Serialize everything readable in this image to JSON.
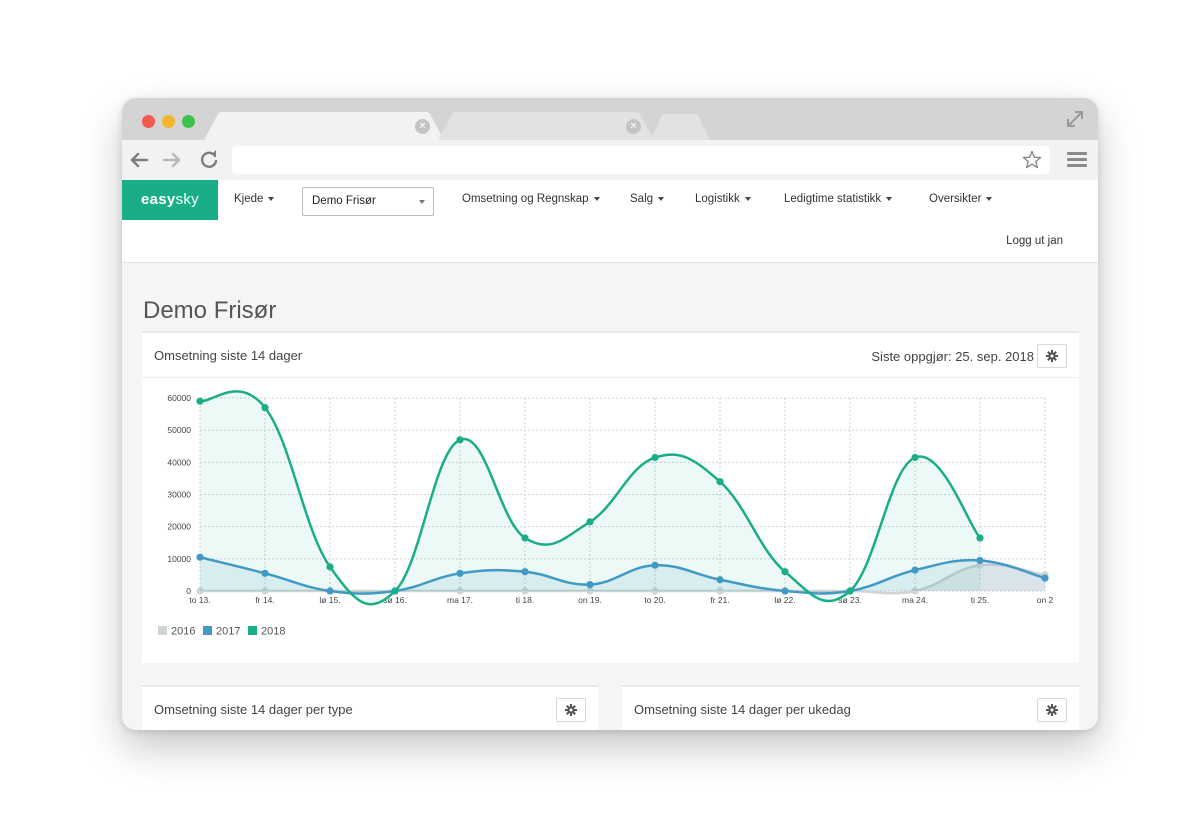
{
  "colors": {
    "accent": "#1aae88",
    "s2016": "#cfd4d4",
    "s2017": "#4498c8",
    "s2018": "#1aae88"
  },
  "browser": {
    "address_value": ""
  },
  "appnav": {
    "logo_part1": "easy",
    "logo_part2": "sky",
    "items": [
      {
        "label": "Kjede"
      },
      {
        "label": "Omsetning og Regnskap"
      },
      {
        "label": "Salg"
      },
      {
        "label": "Logistikk"
      },
      {
        "label": "Ledigtime statistikk"
      },
      {
        "label": "Oversikter"
      }
    ],
    "store_select": "Demo Frisør",
    "logout": "Logg ut jan"
  },
  "page": {
    "title": "Demo Frisør"
  },
  "panels": {
    "main": {
      "title": "Omsetning siste 14 dager",
      "last_settlement": "Siste oppgjør: 25. sep. 2018"
    },
    "by_type": {
      "title": "Omsetning siste 14 dager per type"
    },
    "by_weekday": {
      "title": "Omsetning siste 14 dager per ukedag"
    }
  },
  "chart_data": {
    "type": "area",
    "categories": [
      "to 13.",
      "fr 14.",
      "lø 15.",
      "sø 16.",
      "ma 17.",
      "ti 18.",
      "on 19.",
      "to 20.",
      "fr 21.",
      "lø 22.",
      "sø 23.",
      "ma 24.",
      "ti 25.",
      "on 2"
    ],
    "ylim": [
      0,
      60000
    ],
    "yticks": [
      0,
      10000,
      20000,
      30000,
      40000,
      50000,
      60000
    ],
    "grid": true,
    "legend_position": "bottom-left",
    "series": [
      {
        "name": "2016",
        "values": [
          0,
          0,
          0,
          0,
          0,
          0,
          0,
          0,
          0,
          0,
          0,
          0,
          8000,
          5000
        ]
      },
      {
        "name": "2017",
        "values": [
          10500,
          5500,
          0,
          0,
          5500,
          6000,
          2000,
          8000,
          3500,
          0,
          0,
          6500,
          9500,
          4000
        ]
      },
      {
        "name": "2018",
        "values": [
          59000,
          57000,
          7500,
          0,
          47000,
          16500,
          21500,
          41500,
          34000,
          6000,
          0,
          41500,
          16500,
          null
        ]
      }
    ]
  }
}
